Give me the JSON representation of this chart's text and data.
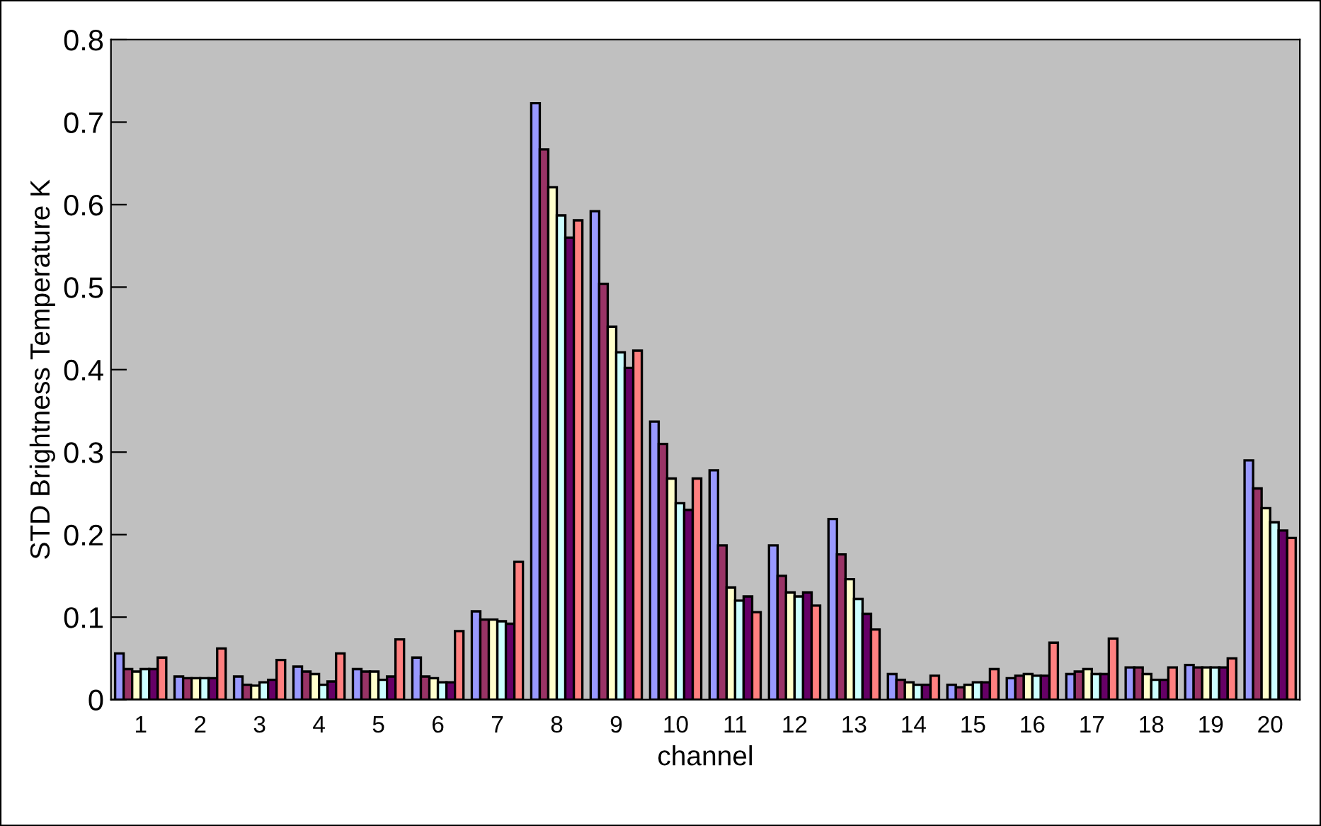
{
  "chart_data": {
    "type": "bar",
    "xlabel": "channel",
    "ylabel": "STD Brightness Temperature K",
    "categories": [
      "1",
      "2",
      "3",
      "4",
      "5",
      "6",
      "7",
      "8",
      "9",
      "10",
      "11",
      "12",
      "13",
      "14",
      "15",
      "16",
      "17",
      "18",
      "19",
      "20"
    ],
    "series": [
      {
        "color": "#9999ff",
        "values": [
          0.056,
          0.028,
          0.028,
          0.04,
          0.037,
          0.051,
          0.107,
          0.723,
          0.592,
          0.337,
          0.278,
          0.187,
          0.219,
          0.031,
          0.018,
          0.026,
          0.031,
          0.039,
          0.042,
          0.29
        ]
      },
      {
        "color": "#993366",
        "values": [
          0.037,
          0.026,
          0.018,
          0.034,
          0.034,
          0.028,
          0.097,
          0.667,
          0.504,
          0.31,
          0.187,
          0.15,
          0.176,
          0.024,
          0.015,
          0.029,
          0.034,
          0.039,
          0.039,
          0.256
        ]
      },
      {
        "color": "#ffffcc",
        "values": [
          0.034,
          0.026,
          0.017,
          0.031,
          0.034,
          0.026,
          0.097,
          0.621,
          0.452,
          0.268,
          0.136,
          0.13,
          0.146,
          0.021,
          0.018,
          0.031,
          0.037,
          0.031,
          0.039,
          0.232
        ]
      },
      {
        "color": "#ccffff",
        "values": [
          0.037,
          0.026,
          0.021,
          0.018,
          0.024,
          0.021,
          0.095,
          0.587,
          0.421,
          0.238,
          0.12,
          0.125,
          0.122,
          0.018,
          0.021,
          0.029,
          0.031,
          0.024,
          0.039,
          0.215
        ]
      },
      {
        "color": "#660066",
        "values": [
          0.037,
          0.026,
          0.024,
          0.022,
          0.028,
          0.021,
          0.092,
          0.56,
          0.402,
          0.23,
          0.125,
          0.13,
          0.104,
          0.018,
          0.021,
          0.029,
          0.031,
          0.024,
          0.039,
          0.205
        ]
      },
      {
        "color": "#ff8080",
        "values": [
          0.051,
          0.062,
          0.048,
          0.056,
          0.073,
          0.083,
          0.167,
          0.581,
          0.423,
          0.268,
          0.106,
          0.114,
          0.085,
          0.029,
          0.037,
          0.069,
          0.074,
          0.039,
          0.05,
          0.196
        ]
      }
    ],
    "ylim": [
      0,
      0.8
    ],
    "yticks": [
      0,
      0.1,
      0.2,
      0.3,
      0.4,
      0.5,
      0.6,
      0.7,
      0.8
    ],
    "grid": false
  }
}
